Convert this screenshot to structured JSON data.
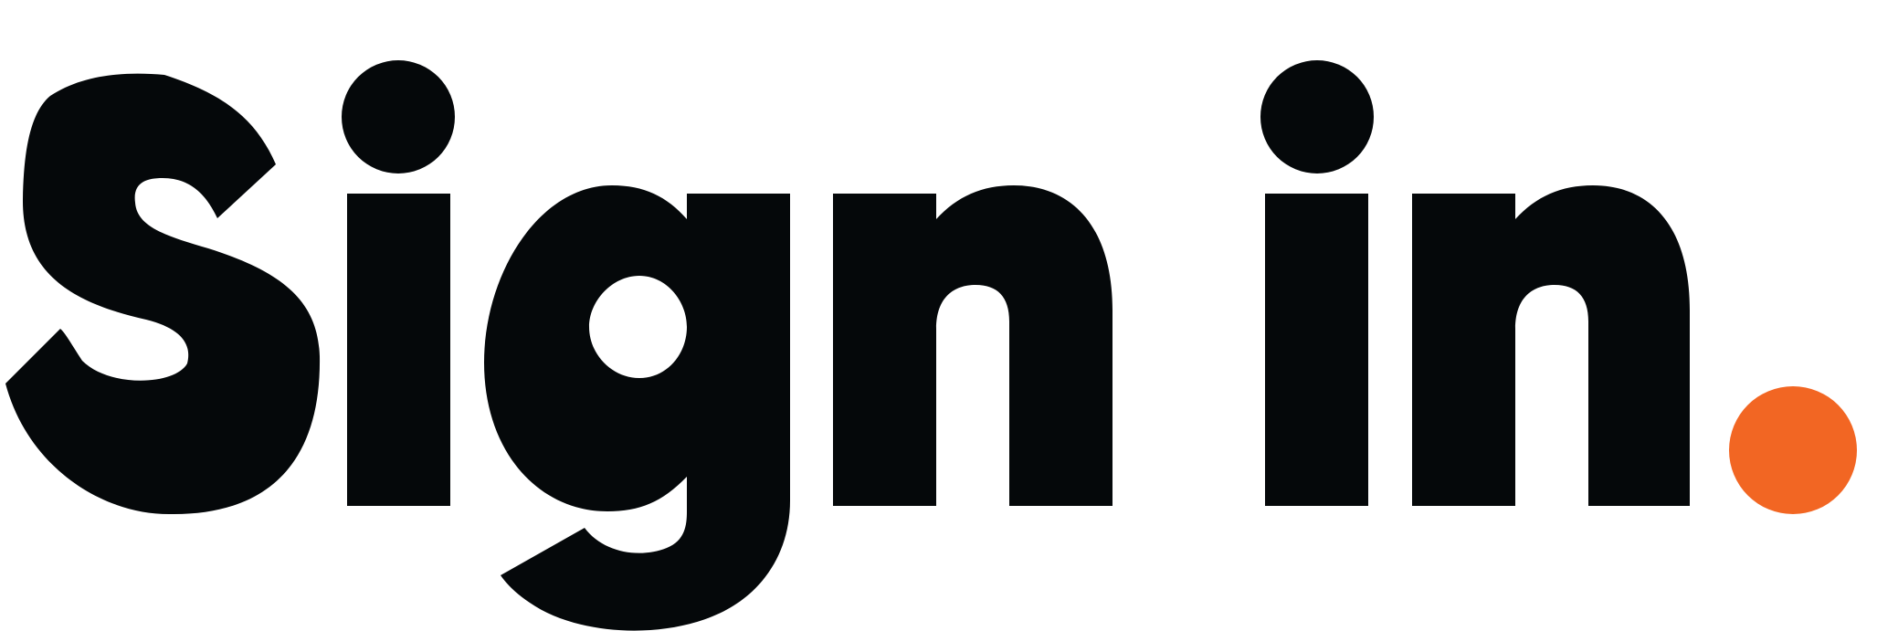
{
  "heading": {
    "text": "Sign in.",
    "ink_color": "#05080A",
    "accent_color": "#F26623"
  }
}
